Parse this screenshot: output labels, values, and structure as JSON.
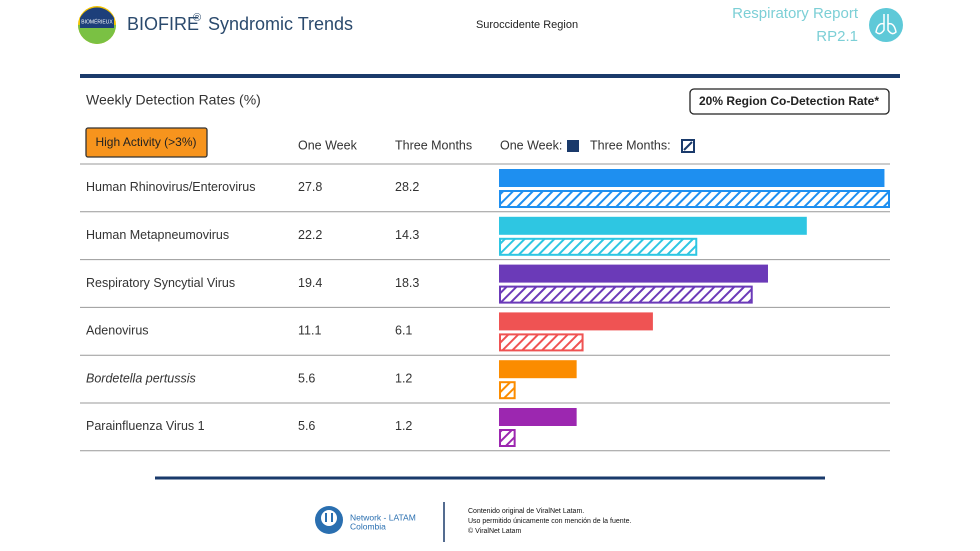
{
  "header": {
    "logo_text": "BIOMÉRIEUX",
    "brand": "BIOFIRE",
    "brand_mark": "®",
    "title": "Syndromic Trends",
    "region": "Suroccidente Region",
    "report": "Respiratory Report",
    "report_code": "RP2.1"
  },
  "chart_data": {
    "type": "bar",
    "orientation": "horizontal",
    "title": "Weekly Detection Rates (%)",
    "badge": "20% Region Co-Detection Rate*",
    "activity_label": "High Activity (>3%)",
    "legend_labels": [
      "One Week:",
      "Three Months:"
    ],
    "categories": [
      "Human Rhinovirus/Enterovirus",
      "Human Metapneumovirus",
      "Respiratory Syncytial Virus",
      "Adenovirus",
      "Bordetella pertussis",
      "Parainfluenza Virus 1"
    ],
    "colors": [
      "#1e8ff0",
      "#2ec6e2",
      "#6b3ab8",
      "#ef5353",
      "#fb8c00",
      "#9c27b0"
    ],
    "series": [
      {
        "name": "One Week",
        "style": "solid",
        "values": [
          27.8,
          22.2,
          19.4,
          11.1,
          5.6,
          5.6
        ]
      },
      {
        "name": "Three Months",
        "style": "hatched",
        "values": [
          28.2,
          14.3,
          18.3,
          6.1,
          1.2,
          1.2
        ]
      }
    ]
  },
  "footer": {
    "network": "Network - LATAM",
    "country": "Colombia",
    "notes": [
      "Contenido original de ViralNet Latam.",
      "Uso permitido únicamente con mención de la fuente.",
      "© ViralNet Latam"
    ]
  }
}
